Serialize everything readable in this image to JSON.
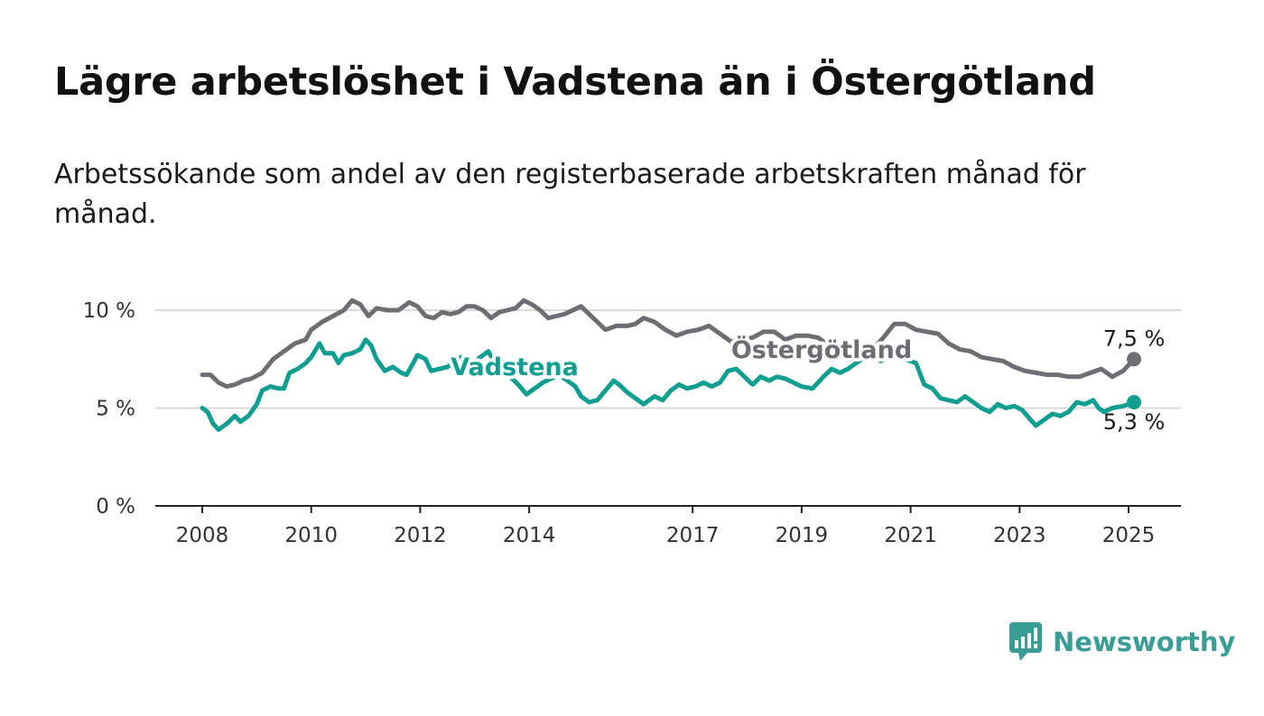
{
  "header": {
    "title": "Lägre arbetslöshet i Vadstena än i Östergötland",
    "subtitle": "Arbetssökande som andel av den registerbaserade arbetskraften månad för månad."
  },
  "brand": {
    "name": "Newsworthy",
    "icon": "newsworthy-chart-logo-icon",
    "color": "#3a9c95"
  },
  "chart_data": {
    "type": "line",
    "title": "Lägre arbetslöshet i Vadstena än i Östergötland",
    "subtitle": "Arbetssökande som andel av den registerbaserade arbetskraften månad för månad.",
    "xlabel": "",
    "ylabel": "",
    "xlim": [
      2008,
      2025.1
    ],
    "ylim": [
      0,
      10.5
    ],
    "x_ticks": [
      2008,
      2010,
      2012,
      2014,
      2017,
      2019,
      2021,
      2023,
      2025
    ],
    "x_tick_labels": [
      "2008",
      "2010",
      "2012",
      "2014",
      "2017",
      "2019",
      "2021",
      "2023",
      "2025"
    ],
    "y_ticks": [
      0,
      5,
      10
    ],
    "y_tick_labels": [
      "0 %",
      "5 %",
      "10 %"
    ],
    "grid": "horizontal",
    "series": [
      {
        "name": "Östergötland",
        "color": "#6e6d73",
        "end_label": "7,5 %",
        "points": [
          [
            2008.0,
            6.7
          ],
          [
            2008.15,
            6.7
          ],
          [
            2008.3,
            6.3
          ],
          [
            2008.45,
            6.1
          ],
          [
            2008.6,
            6.2
          ],
          [
            2008.75,
            6.4
          ],
          [
            2008.9,
            6.5
          ],
          [
            2009.1,
            6.8
          ],
          [
            2009.3,
            7.5
          ],
          [
            2009.5,
            7.9
          ],
          [
            2009.7,
            8.3
          ],
          [
            2009.9,
            8.5
          ],
          [
            2010.0,
            9.0
          ],
          [
            2010.2,
            9.4
          ],
          [
            2010.4,
            9.7
          ],
          [
            2010.6,
            10.0
          ],
          [
            2010.75,
            10.5
          ],
          [
            2010.9,
            10.3
          ],
          [
            2011.05,
            9.7
          ],
          [
            2011.2,
            10.1
          ],
          [
            2011.4,
            10.0
          ],
          [
            2011.6,
            10.0
          ],
          [
            2011.8,
            10.4
          ],
          [
            2011.95,
            10.2
          ],
          [
            2012.1,
            9.7
          ],
          [
            2012.25,
            9.6
          ],
          [
            2012.4,
            9.9
          ],
          [
            2012.55,
            9.8
          ],
          [
            2012.7,
            9.9
          ],
          [
            2012.85,
            10.2
          ],
          [
            2013.0,
            10.2
          ],
          [
            2013.15,
            10.0
          ],
          [
            2013.3,
            9.6
          ],
          [
            2013.45,
            9.9
          ],
          [
            2013.6,
            10.0
          ],
          [
            2013.75,
            10.1
          ],
          [
            2013.9,
            10.5
          ],
          [
            2014.05,
            10.3
          ],
          [
            2014.2,
            10.0
          ],
          [
            2014.35,
            9.6
          ],
          [
            2014.5,
            9.7
          ],
          [
            2014.65,
            9.8
          ],
          [
            2014.8,
            10.0
          ],
          [
            2014.95,
            10.2
          ],
          [
            2015.1,
            9.8
          ],
          [
            2015.25,
            9.4
          ],
          [
            2015.4,
            9.0
          ],
          [
            2015.6,
            9.2
          ],
          [
            2015.8,
            9.2
          ],
          [
            2015.95,
            9.3
          ],
          [
            2016.1,
            9.6
          ],
          [
            2016.3,
            9.4
          ],
          [
            2016.5,
            9.0
          ],
          [
            2016.7,
            8.7
          ],
          [
            2016.9,
            8.9
          ],
          [
            2017.1,
            9.0
          ],
          [
            2017.3,
            9.2
          ],
          [
            2017.5,
            8.8
          ],
          [
            2017.7,
            8.4
          ],
          [
            2017.9,
            8.5
          ],
          [
            2018.1,
            8.6
          ],
          [
            2018.3,
            8.9
          ],
          [
            2018.5,
            8.9
          ],
          [
            2018.7,
            8.5
          ],
          [
            2018.9,
            8.7
          ],
          [
            2019.1,
            8.7
          ],
          [
            2019.3,
            8.6
          ],
          [
            2019.5,
            8.2
          ],
          [
            2019.7,
            7.7
          ],
          [
            2019.9,
            7.6
          ],
          [
            2020.1,
            7.7
          ],
          [
            2020.3,
            8.0
          ],
          [
            2020.5,
            8.6
          ],
          [
            2020.7,
            9.3
          ],
          [
            2020.9,
            9.3
          ],
          [
            2021.1,
            9.0
          ],
          [
            2021.3,
            8.9
          ],
          [
            2021.5,
            8.8
          ],
          [
            2021.7,
            8.3
          ],
          [
            2021.9,
            8.0
          ],
          [
            2022.1,
            7.9
          ],
          [
            2022.3,
            7.6
          ],
          [
            2022.5,
            7.5
          ],
          [
            2022.7,
            7.4
          ],
          [
            2022.9,
            7.1
          ],
          [
            2023.1,
            6.9
          ],
          [
            2023.3,
            6.8
          ],
          [
            2023.5,
            6.7
          ],
          [
            2023.7,
            6.7
          ],
          [
            2023.9,
            6.6
          ],
          [
            2024.1,
            6.6
          ],
          [
            2024.3,
            6.8
          ],
          [
            2024.5,
            7.0
          ],
          [
            2024.7,
            6.6
          ],
          [
            2024.9,
            6.9
          ],
          [
            2025.1,
            7.5
          ]
        ]
      },
      {
        "name": "Vadstena",
        "color": "#0f9e8f",
        "end_label": "5,3 %",
        "points": [
          [
            2008.0,
            5.0
          ],
          [
            2008.1,
            4.8
          ],
          [
            2008.2,
            4.2
          ],
          [
            2008.3,
            3.9
          ],
          [
            2008.45,
            4.2
          ],
          [
            2008.6,
            4.6
          ],
          [
            2008.7,
            4.3
          ],
          [
            2008.85,
            4.6
          ],
          [
            2009.0,
            5.2
          ],
          [
            2009.1,
            5.9
          ],
          [
            2009.25,
            6.1
          ],
          [
            2009.4,
            6.0
          ],
          [
            2009.5,
            6.0
          ],
          [
            2009.6,
            6.8
          ],
          [
            2009.75,
            7.0
          ],
          [
            2009.9,
            7.3
          ],
          [
            2010.0,
            7.6
          ],
          [
            2010.15,
            8.3
          ],
          [
            2010.25,
            7.8
          ],
          [
            2010.4,
            7.8
          ],
          [
            2010.5,
            7.3
          ],
          [
            2010.6,
            7.7
          ],
          [
            2010.75,
            7.8
          ],
          [
            2010.9,
            8.0
          ],
          [
            2011.0,
            8.5
          ],
          [
            2011.1,
            8.2
          ],
          [
            2011.2,
            7.5
          ],
          [
            2011.35,
            6.9
          ],
          [
            2011.5,
            7.1
          ],
          [
            2011.65,
            6.8
          ],
          [
            2011.75,
            6.7
          ],
          [
            2011.85,
            7.2
          ],
          [
            2011.95,
            7.7
          ],
          [
            2012.1,
            7.5
          ],
          [
            2012.2,
            6.9
          ],
          [
            2012.35,
            7.0
          ],
          [
            2012.5,
            7.1
          ],
          [
            2012.6,
            7.3
          ],
          [
            2012.75,
            7.6
          ],
          [
            2012.85,
            7.5
          ],
          [
            2012.95,
            7.2
          ],
          [
            2013.1,
            7.6
          ],
          [
            2013.25,
            7.9
          ],
          [
            2013.35,
            7.4
          ],
          [
            2013.5,
            6.8
          ],
          [
            2013.65,
            6.6
          ],
          [
            2013.8,
            6.2
          ],
          [
            2013.95,
            5.7
          ],
          [
            2014.1,
            6.0
          ],
          [
            2014.25,
            6.3
          ],
          [
            2014.4,
            6.5
          ],
          [
            2014.55,
            6.7
          ],
          [
            2014.7,
            6.4
          ],
          [
            2014.85,
            6.1
          ],
          [
            2014.95,
            5.6
          ],
          [
            2015.1,
            5.3
          ],
          [
            2015.25,
            5.4
          ],
          [
            2015.4,
            5.9
          ],
          [
            2015.55,
            6.4
          ],
          [
            2015.65,
            6.2
          ],
          [
            2015.8,
            5.8
          ],
          [
            2015.95,
            5.5
          ],
          [
            2016.1,
            5.2
          ],
          [
            2016.3,
            5.6
          ],
          [
            2016.45,
            5.4
          ],
          [
            2016.6,
            5.9
          ],
          [
            2016.75,
            6.2
          ],
          [
            2016.9,
            6.0
          ],
          [
            2017.05,
            6.1
          ],
          [
            2017.2,
            6.3
          ],
          [
            2017.35,
            6.1
          ],
          [
            2017.5,
            6.3
          ],
          [
            2017.65,
            6.9
          ],
          [
            2017.8,
            7.0
          ],
          [
            2017.95,
            6.6
          ],
          [
            2018.1,
            6.2
          ],
          [
            2018.25,
            6.6
          ],
          [
            2018.4,
            6.4
          ],
          [
            2018.55,
            6.6
          ],
          [
            2018.7,
            6.5
          ],
          [
            2018.85,
            6.3
          ],
          [
            2019.0,
            6.1
          ],
          [
            2019.2,
            6.0
          ],
          [
            2019.4,
            6.6
          ],
          [
            2019.55,
            7.0
          ],
          [
            2019.7,
            6.8
          ],
          [
            2019.85,
            7.0
          ],
          [
            2020.0,
            7.3
          ],
          [
            2020.15,
            7.6
          ],
          [
            2020.3,
            7.7
          ],
          [
            2020.45,
            7.4
          ],
          [
            2020.6,
            7.6
          ],
          [
            2020.75,
            7.8
          ],
          [
            2020.9,
            7.5
          ],
          [
            2021.1,
            7.3
          ],
          [
            2021.25,
            6.2
          ],
          [
            2021.4,
            6.0
          ],
          [
            2021.55,
            5.5
          ],
          [
            2021.7,
            5.4
          ],
          [
            2021.85,
            5.3
          ],
          [
            2022.0,
            5.6
          ],
          [
            2022.15,
            5.3
          ],
          [
            2022.3,
            5.0
          ],
          [
            2022.45,
            4.8
          ],
          [
            2022.6,
            5.2
          ],
          [
            2022.75,
            5.0
          ],
          [
            2022.9,
            5.1
          ],
          [
            2023.05,
            4.9
          ],
          [
            2023.2,
            4.4
          ],
          [
            2023.3,
            4.1
          ],
          [
            2023.45,
            4.4
          ],
          [
            2023.6,
            4.7
          ],
          [
            2023.75,
            4.6
          ],
          [
            2023.9,
            4.8
          ],
          [
            2024.05,
            5.3
          ],
          [
            2024.2,
            5.2
          ],
          [
            2024.35,
            5.4
          ],
          [
            2024.45,
            5.0
          ],
          [
            2024.55,
            4.8
          ],
          [
            2024.7,
            5.0
          ],
          [
            2024.9,
            5.1
          ],
          [
            2025.1,
            5.3
          ]
        ]
      }
    ]
  }
}
